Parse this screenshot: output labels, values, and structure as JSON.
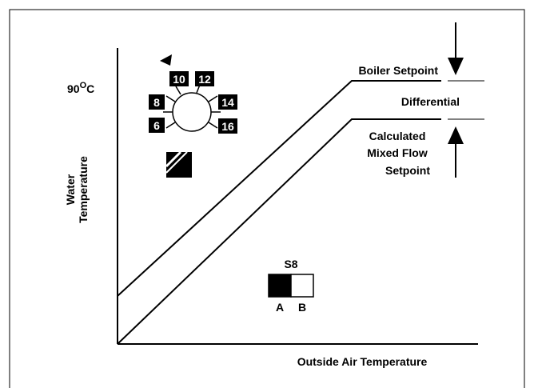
{
  "axis": {
    "temp_mark": {
      "number": "90",
      "degree": "O",
      "unit": "C"
    },
    "y_label": [
      "Water",
      "Temperature"
    ],
    "x_label": "Outside Air Temperature"
  },
  "annotations": {
    "boiler_setpoint": "Boiler Setpoint",
    "differential": "Differential",
    "calculated": [
      "Calculated",
      "Mixed Flow",
      "Setpoint"
    ]
  },
  "dial": {
    "numbers": [
      "10",
      "12",
      "8",
      "14",
      "6",
      "16"
    ]
  },
  "switch": {
    "name": "S8",
    "left": "A",
    "right": "B"
  }
}
